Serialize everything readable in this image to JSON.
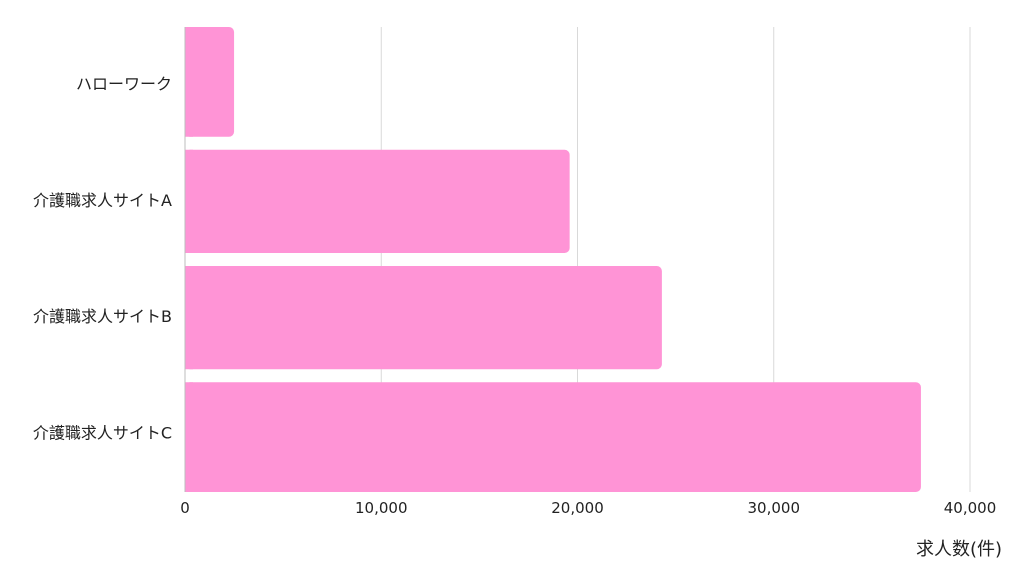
{
  "chart_data": {
    "type": "bar",
    "orientation": "horizontal",
    "categories": [
      "ハローワーク",
      "介護職求人サイトA",
      "介護職求人サイトB",
      "介護職求人サイトC"
    ],
    "values": [
      2500,
      19600,
      24300,
      37500
    ],
    "xlabel": "求人数(件)",
    "ylabel": "",
    "xlim": [
      0,
      40000
    ],
    "xticks": [
      0,
      10000,
      20000,
      30000,
      40000
    ],
    "xtick_labels": [
      "0",
      "10,000",
      "20,000",
      "30,000",
      "40,000"
    ],
    "grid": "vertical",
    "bar_color": "#ff94d6",
    "grid_color": "#d9d9d9"
  }
}
